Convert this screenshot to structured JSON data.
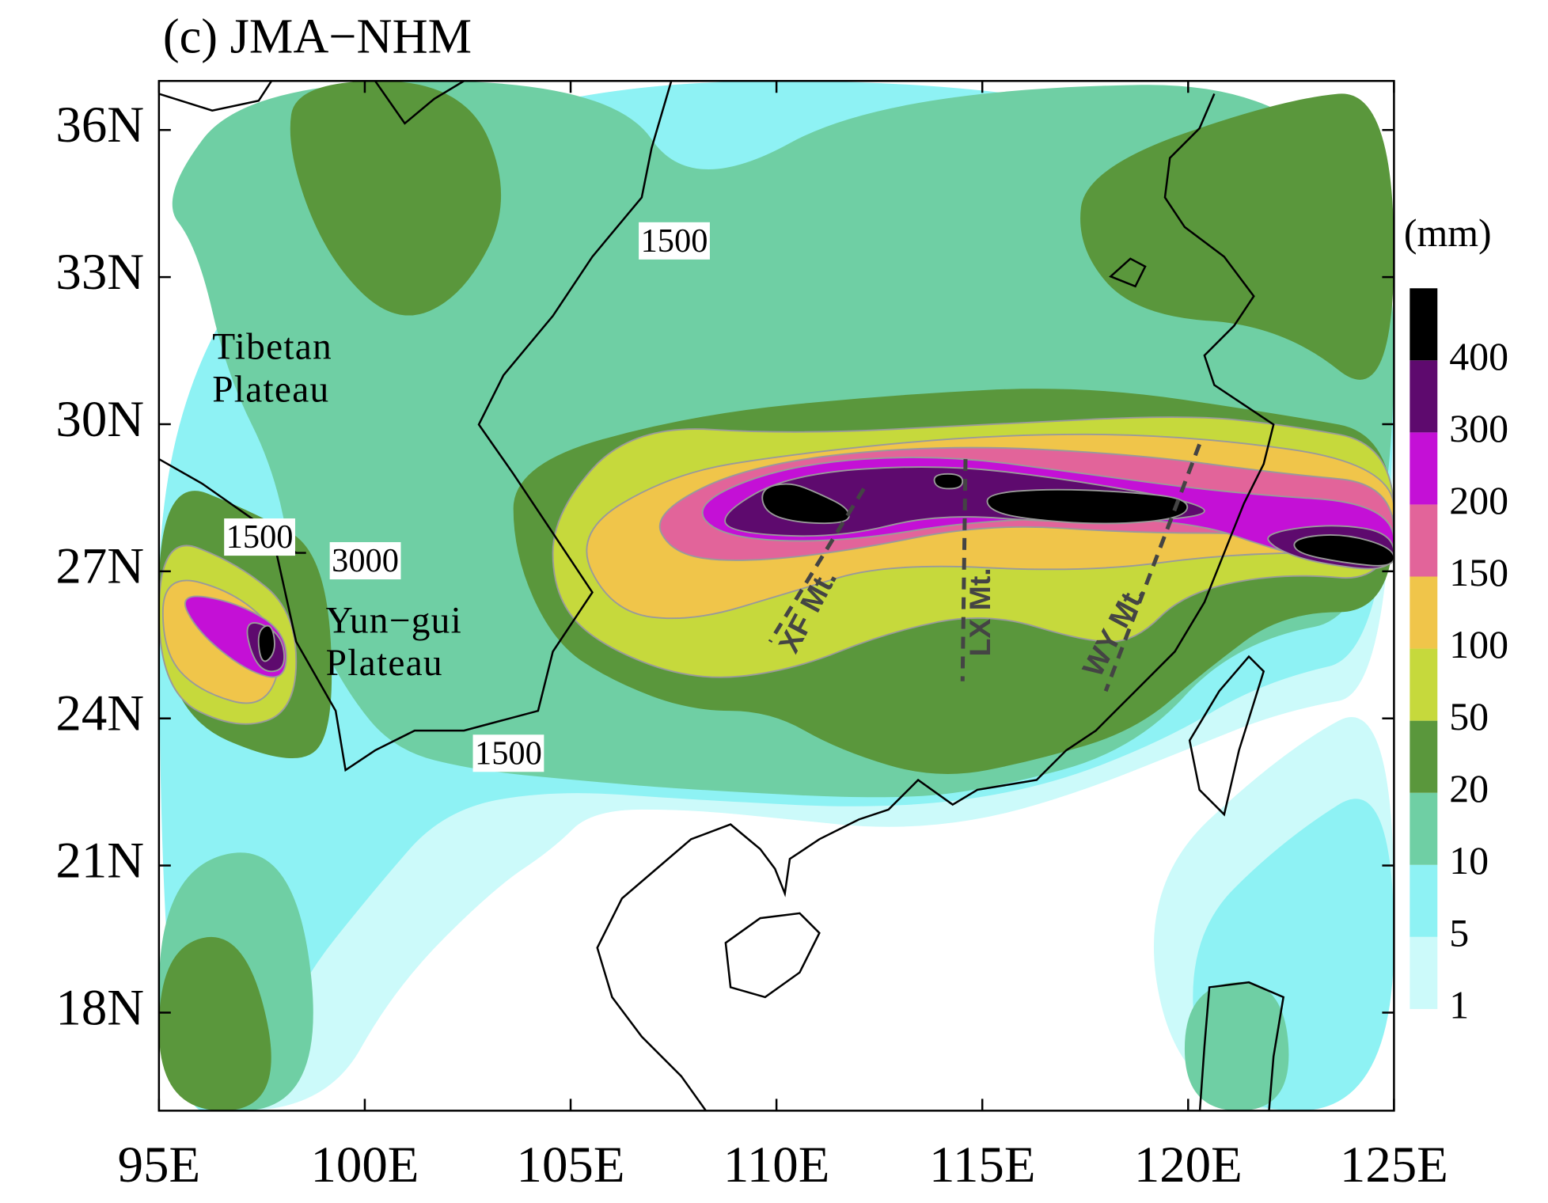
{
  "title": "(c) JMA−NHM",
  "map": {
    "xlim": [
      95,
      125
    ],
    "ylim": [
      16,
      37
    ],
    "xticks": [
      {
        "value": 95,
        "label": "95E"
      },
      {
        "value": 100,
        "label": "100E"
      },
      {
        "value": 105,
        "label": "105E"
      },
      {
        "value": 110,
        "label": "110E"
      },
      {
        "value": 115,
        "label": "115E"
      },
      {
        "value": 120,
        "label": "120E"
      },
      {
        "value": 125,
        "label": "125E"
      }
    ],
    "yticks": [
      {
        "value": 18,
        "label": "18N"
      },
      {
        "value": 21,
        "label": "21N"
      },
      {
        "value": 24,
        "label": "24N"
      },
      {
        "value": 27,
        "label": "27N"
      },
      {
        "value": 30,
        "label": "30N"
      },
      {
        "value": 33,
        "label": "33N"
      },
      {
        "value": 36,
        "label": "36N"
      }
    ]
  },
  "colorbar": {
    "unit": "(mm)",
    "levels": [
      1,
      5,
      10,
      20,
      50,
      100,
      150,
      200,
      300,
      400
    ],
    "colors": [
      "#ccfafa",
      "#8ef2f4",
      "#6fcfa4",
      "#5a973c",
      "#c6d93c",
      "#f0c54a",
      "#e2649a",
      "#c410d6",
      "#5e0a6e",
      "#000000"
    ]
  },
  "annotations": {
    "regions": [
      [
        "Tibetan",
        "Plateau"
      ],
      [
        "Yun−gui",
        "Plateau"
      ]
    ],
    "contour_labels": [
      1500,
      1500,
      1500,
      3000
    ],
    "mountains": [
      "XF Mt.",
      "LX Mt.",
      "WY Mt."
    ]
  }
}
